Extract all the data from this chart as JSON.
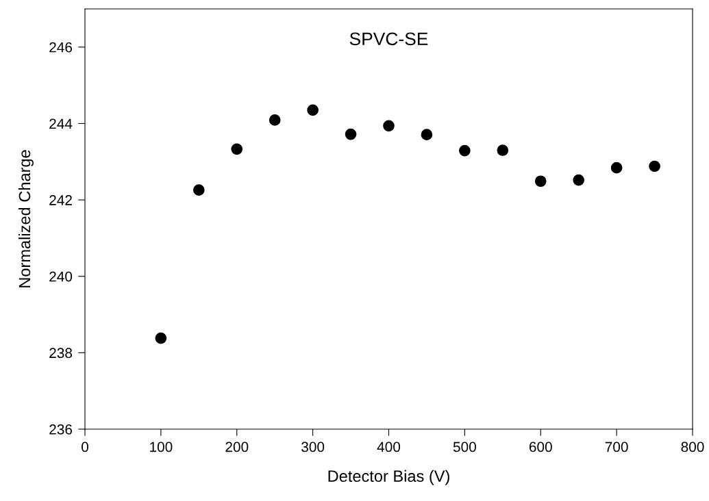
{
  "chart_data": {
    "type": "scatter",
    "title": "SPVC-SE",
    "xlabel": "Detector Bias (V)",
    "ylabel": "Normalized Charge",
    "x": [
      100,
      150,
      200,
      250,
      300,
      350,
      400,
      450,
      500,
      550,
      600,
      650,
      700,
      750
    ],
    "series": [
      {
        "color": "#000000",
        "values": [
          238.38,
          242.26,
          243.33,
          244.09,
          244.35,
          243.72,
          243.94,
          243.71,
          243.29,
          243.3,
          242.49,
          242.52,
          242.84,
          242.88
        ]
      }
    ],
    "xlim": [
      0,
      800
    ],
    "xticks": [
      0,
      100,
      200,
      300,
      400,
      500,
      600,
      700,
      800
    ],
    "ylim": [
      236,
      247
    ],
    "yticks": [
      236,
      238,
      240,
      242,
      244,
      246
    ],
    "marker": "circle",
    "grid": false,
    "legend": false
  }
}
